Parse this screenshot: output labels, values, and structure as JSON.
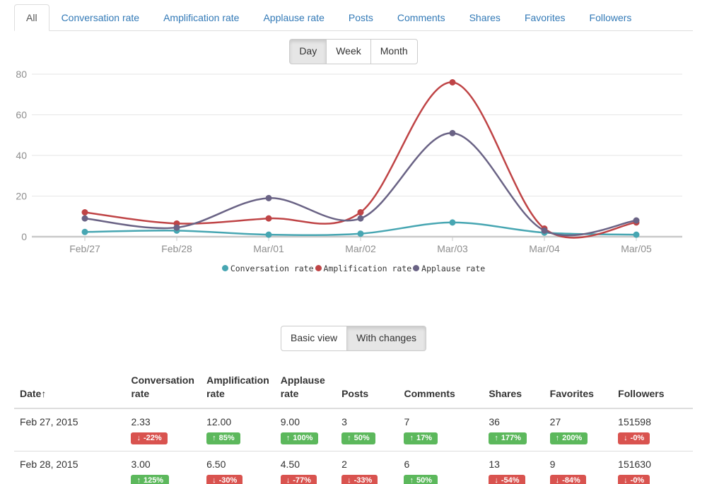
{
  "tab_bar": {
    "tabs": [
      {
        "label": "All",
        "active": true
      },
      {
        "label": "Conversation rate",
        "active": false
      },
      {
        "label": "Amplification rate",
        "active": false
      },
      {
        "label": "Applause rate",
        "active": false
      },
      {
        "label": "Posts",
        "active": false
      },
      {
        "label": "Comments",
        "active": false
      },
      {
        "label": "Shares",
        "active": false
      },
      {
        "label": "Favorites",
        "active": false
      },
      {
        "label": "Followers",
        "active": false
      }
    ]
  },
  "range_toggle": {
    "options": [
      "Day",
      "Week",
      "Month"
    ],
    "active": "Day"
  },
  "view_toggle": {
    "options": [
      "Basic view",
      "With changes"
    ],
    "active": "With changes"
  },
  "chart_data": {
    "type": "line",
    "x": [
      "Feb/27",
      "Feb/28",
      "Mar/01",
      "Mar/02",
      "Mar/03",
      "Mar/04",
      "Mar/05"
    ],
    "series": [
      {
        "name": "Conversation rate",
        "color": "#47a6b2",
        "values": [
          2.33,
          3,
          1,
          1.5,
          7,
          2,
          1
        ]
      },
      {
        "name": "Amplification rate",
        "color": "#bf4446",
        "values": [
          12,
          6.5,
          9,
          12,
          76,
          4,
          7
        ]
      },
      {
        "name": "Applause rate",
        "color": "#6a6385",
        "values": [
          9,
          4.5,
          19,
          9,
          51,
          3,
          8
        ]
      }
    ],
    "title": "",
    "xlabel": "",
    "ylabel": "",
    "ylim": [
      0,
      80
    ],
    "yticks": [
      0,
      20,
      40,
      60,
      80
    ],
    "grid": true,
    "legend_position": "bottom"
  },
  "table": {
    "columns": [
      {
        "label": "Date",
        "sort_arrow": "↑"
      },
      {
        "label": "Conversation rate"
      },
      {
        "label": "Amplification rate"
      },
      {
        "label": "Applause rate"
      },
      {
        "label": "Posts"
      },
      {
        "label": "Comments"
      },
      {
        "label": "Shares"
      },
      {
        "label": "Favorites"
      },
      {
        "label": "Followers"
      }
    ],
    "rows": [
      {
        "date": "Feb 27, 2015",
        "metrics": [
          {
            "value": "2.33",
            "change": "-22%",
            "direction": "down"
          },
          {
            "value": "12.00",
            "change": "85%",
            "direction": "up"
          },
          {
            "value": "9.00",
            "change": "100%",
            "direction": "up"
          },
          {
            "value": "3",
            "change": "50%",
            "direction": "up"
          },
          {
            "value": "7",
            "change": "17%",
            "direction": "up"
          },
          {
            "value": "36",
            "change": "177%",
            "direction": "up"
          },
          {
            "value": "27",
            "change": "200%",
            "direction": "up"
          },
          {
            "value": "151598",
            "change": "-0%",
            "direction": "down"
          }
        ]
      },
      {
        "date": "Feb 28, 2015",
        "metrics": [
          {
            "value": "3.00",
            "change": "125%",
            "direction": "up"
          },
          {
            "value": "6.50",
            "change": "-30%",
            "direction": "down"
          },
          {
            "value": "4.50",
            "change": "-77%",
            "direction": "down"
          },
          {
            "value": "2",
            "change": "-33%",
            "direction": "down"
          },
          {
            "value": "6",
            "change": "50%",
            "direction": "up"
          },
          {
            "value": "13",
            "change": "-54%",
            "direction": "down"
          },
          {
            "value": "9",
            "change": "-84%",
            "direction": "down"
          },
          {
            "value": "151630",
            "change": "-0%",
            "direction": "down"
          }
        ]
      }
    ]
  },
  "icons": {
    "up_arrow": "↑",
    "down_arrow": "↓"
  },
  "colors": {
    "link": "#337ab7",
    "badge_up": "#5cb85c",
    "badge_down": "#d9534f",
    "axis_label": "#8e8e8e",
    "gridline": "#e6e6e6",
    "axis_line": "#c9c9c9"
  }
}
